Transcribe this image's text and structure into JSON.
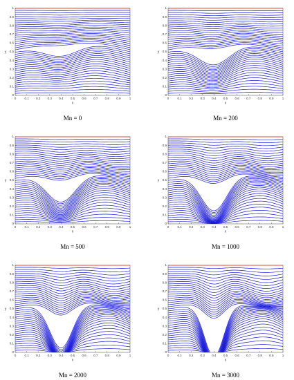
{
  "chart_data": [
    {
      "type": "contour",
      "caption": "Mn = 0",
      "x_label": "x",
      "y_label": "y",
      "xlim": [
        0,
        1
      ],
      "ylim": [
        0,
        1
      ],
      "xticks": [
        0,
        0.1,
        0.2,
        0.3,
        0.4,
        0.5,
        0.6,
        0.7,
        0.8,
        0.9,
        1
      ],
      "yticks": [
        0,
        0.1,
        0.2,
        0.3,
        0.4,
        0.5,
        0.6,
        0.7,
        0.8,
        0.9,
        1
      ]
    },
    {
      "type": "contour",
      "caption": "Mn = 200",
      "x_label": "x",
      "y_label": "y",
      "xlim": [
        0,
        1
      ],
      "ylim": [
        0,
        1
      ],
      "xticks": [
        0,
        0.1,
        0.2,
        0.3,
        0.4,
        0.5,
        0.6,
        0.7,
        0.8,
        0.9,
        1
      ],
      "yticks": [
        0,
        0.1,
        0.2,
        0.3,
        0.4,
        0.5,
        0.6,
        0.7,
        0.8,
        0.9,
        1
      ]
    },
    {
      "type": "contour",
      "caption": "Mn = 500",
      "x_label": "x",
      "y_label": "y",
      "xlim": [
        0,
        1
      ],
      "ylim": [
        0,
        1
      ],
      "xticks": [
        0,
        0.1,
        0.2,
        0.3,
        0.4,
        0.5,
        0.6,
        0.7,
        0.8,
        0.9,
        1
      ],
      "yticks": [
        0,
        0.1,
        0.2,
        0.3,
        0.4,
        0.5,
        0.6,
        0.7,
        0.8,
        0.9,
        1
      ]
    },
    {
      "type": "contour",
      "caption": "Mn = 1000",
      "x_label": "x",
      "y_label": "y",
      "xlim": [
        0,
        1
      ],
      "ylim": [
        0,
        1
      ],
      "xticks": [
        0,
        0.1,
        0.2,
        0.3,
        0.4,
        0.5,
        0.6,
        0.7,
        0.8,
        0.9,
        1
      ],
      "yticks": [
        0,
        0.1,
        0.2,
        0.3,
        0.4,
        0.5,
        0.6,
        0.7,
        0.8,
        0.9,
        1
      ]
    },
    {
      "type": "contour",
      "caption": "Mn = 2000",
      "x_label": "x",
      "y_label": "y",
      "xlim": [
        0,
        1
      ],
      "ylim": [
        0,
        1
      ],
      "xticks": [
        0,
        0.1,
        0.2,
        0.3,
        0.4,
        0.5,
        0.6,
        0.7,
        0.8,
        0.9,
        1
      ],
      "yticks": [
        0,
        0.1,
        0.2,
        0.3,
        0.4,
        0.5,
        0.6,
        0.7,
        0.8,
        0.9,
        1
      ]
    },
    {
      "type": "contour",
      "caption": "Mn = 3000",
      "x_label": "x",
      "y_label": "y",
      "xlim": [
        0,
        1
      ],
      "ylim": [
        0,
        1
      ],
      "xticks": [
        0,
        0.1,
        0.2,
        0.3,
        0.4,
        0.5,
        0.6,
        0.7,
        0.8,
        0.9,
        1
      ],
      "yticks": [
        0,
        0.1,
        0.2,
        0.3,
        0.4,
        0.5,
        0.6,
        0.7,
        0.8,
        0.9,
        1
      ]
    }
  ]
}
